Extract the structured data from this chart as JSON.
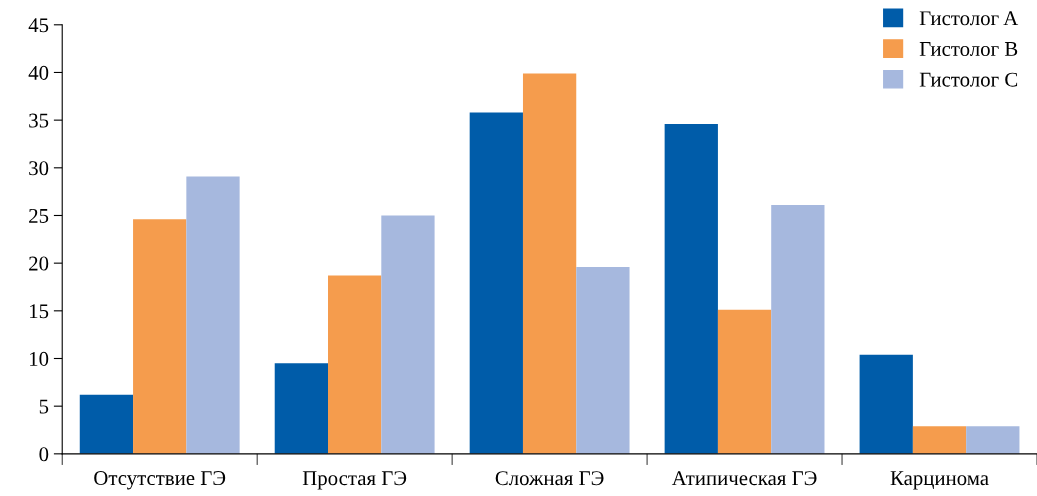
{
  "chart_data": {
    "type": "bar",
    "categories": [
      "Отсутствие ГЭ",
      "Простая ГЭ",
      "Сложная ГЭ",
      "Атипическая ГЭ",
      "Карцинома"
    ],
    "series": [
      {
        "name": "Гистолог A",
        "color": "#005ca9",
        "values": [
          6.2,
          9.5,
          35.8,
          34.6,
          10.4
        ]
      },
      {
        "name": "Гистолог B",
        "color": "#f59c4d",
        "values": [
          24.6,
          18.7,
          39.9,
          15.1,
          2.9
        ]
      },
      {
        "name": "Гистолог C",
        "color": "#a6b8de",
        "values": [
          29.1,
          25.0,
          19.6,
          26.1,
          2.9
        ]
      }
    ],
    "ylim": [
      0,
      45
    ],
    "yticks": [
      0,
      5,
      10,
      15,
      20,
      25,
      30,
      35,
      40,
      45
    ],
    "grid": false,
    "legend": "top right"
  }
}
